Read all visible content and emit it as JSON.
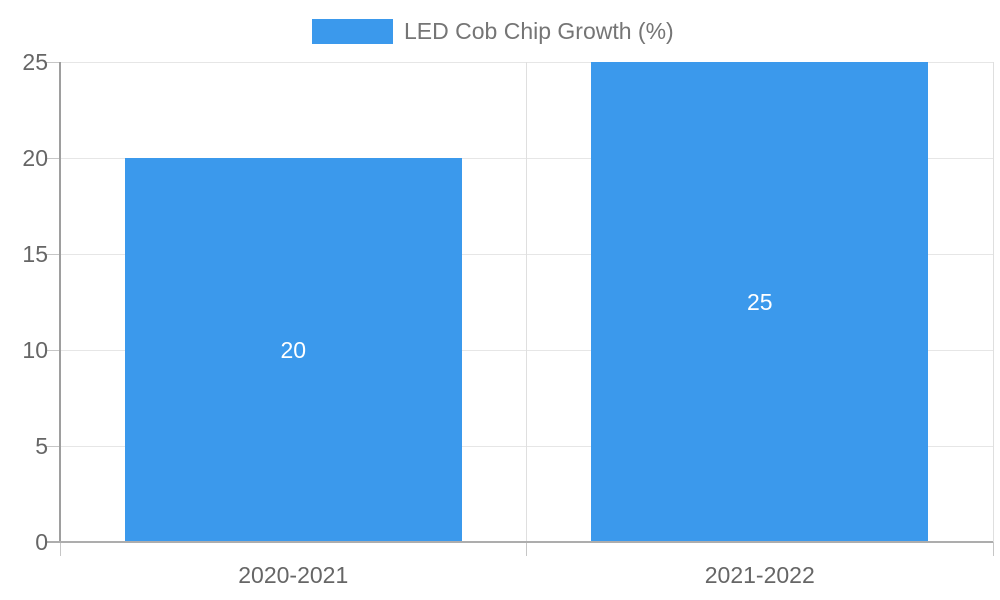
{
  "chart_data": {
    "type": "bar",
    "title": "",
    "legend": {
      "label": "LED Cob Chip Growth (%)",
      "position": "top"
    },
    "categories": [
      "2020-2021",
      "2021-2022"
    ],
    "series": [
      {
        "name": "LED Cob Chip Growth (%)",
        "values": [
          20,
          25
        ],
        "color": "#3B99EC"
      }
    ],
    "bar_labels": [
      "20",
      "25"
    ],
    "xlabel": "",
    "ylabel": "",
    "ylim": [
      0,
      25
    ],
    "yticks": [
      0,
      5,
      10,
      15,
      20,
      25
    ],
    "grid": true
  },
  "colors": {
    "bar": "#3B99EC",
    "gridline_h": "#E6E6E6",
    "gridline_v": "#DFDFDF",
    "y_axis_line": "#9E9E9E",
    "x_axis_line": "#ADADAD",
    "tick_mark": "#C6C6C6",
    "axis_label_text": "#666666",
    "legend_text": "#757575",
    "bar_label_text": "#FFFFFF",
    "background": "#FFFFFF"
  }
}
